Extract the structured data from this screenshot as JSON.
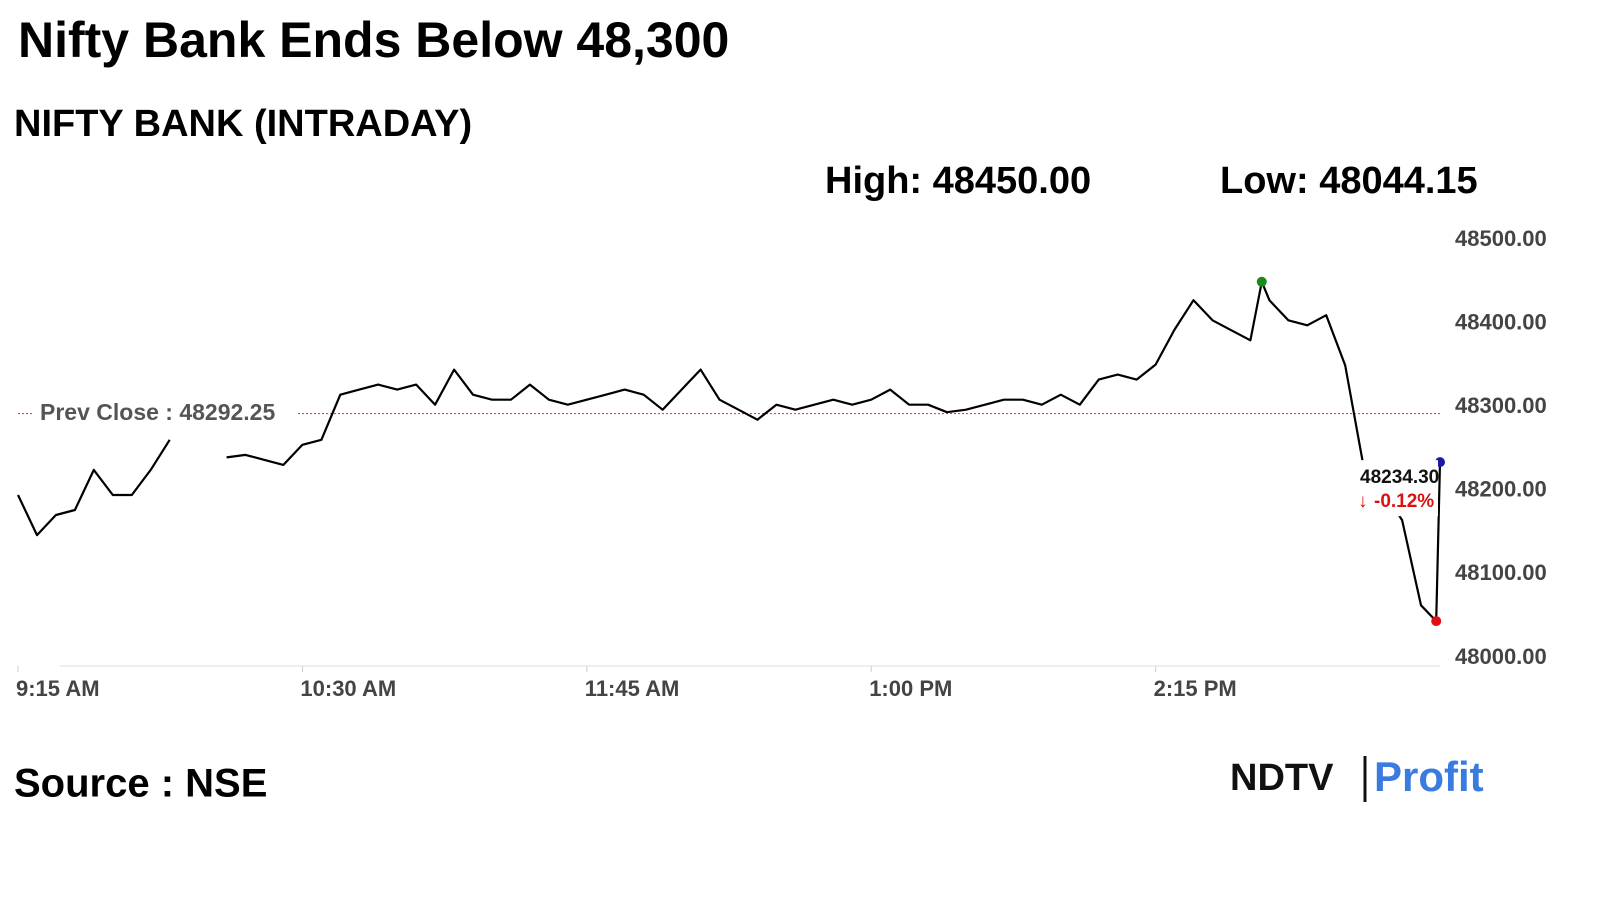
{
  "chart_data": {
    "type": "line",
    "title": "Nifty Bank Ends Below 48,300",
    "subtitle": "NIFTY BANK (INTRADAY)",
    "high_label": "High: 48450.00",
    "low_label": "Low: 48044.15",
    "prev_close": 48292.25,
    "prev_close_label": "Prev Close : 48292.25",
    "prev_close_color": "#d33",
    "last_label": "48234.30",
    "change_label": "-0.12%",
    "source": "Source : NSE",
    "logo": [
      "NDTV",
      "Profit"
    ],
    "x": [
      "9:15 AM",
      "9:20 AM",
      "9:25 AM",
      "9:30 AM",
      "9:35 AM",
      "9:40 AM",
      "9:45 AM",
      "9:50 AM",
      "9:55 AM",
      "10:00 AM",
      "10:05 AM",
      "10:10 AM",
      "10:15 AM",
      "10:20 AM",
      "10:25 AM",
      "10:30 AM",
      "10:35 AM",
      "10:40 AM",
      "10:45 AM",
      "10:50 AM",
      "10:55 AM",
      "11:00 AM",
      "11:05 AM",
      "11:10 AM",
      "11:15 AM",
      "11:20 AM",
      "11:25 AM",
      "11:30 AM",
      "11:35 AM",
      "11:40 AM",
      "11:45 AM",
      "11:50 AM",
      "11:55 AM",
      "12:00 PM",
      "12:05 PM",
      "12:10 PM",
      "12:15 PM",
      "12:20 PM",
      "12:25 PM",
      "12:30 PM",
      "12:35 PM",
      "12:40 PM",
      "12:45 PM",
      "12:50 PM",
      "12:55 PM",
      "1:00 PM",
      "1:05 PM",
      "1:10 PM",
      "1:15 PM",
      "1:20 PM",
      "1:25 PM",
      "1:30 PM",
      "1:35 PM",
      "1:40 PM",
      "1:45 PM",
      "1:50 PM",
      "1:55 PM",
      "2:00 PM",
      "2:05 PM",
      "2:10 PM",
      "2:15 PM",
      "2:20 PM",
      "2:25 PM",
      "2:30 PM",
      "2:35 PM",
      "2:40 PM",
      "2:43 PM",
      "2:45 PM",
      "2:50 PM",
      "2:55 PM",
      "3:00 PM",
      "3:05 PM",
      "3:10 PM",
      "3:15 PM",
      "3:20 PM",
      "3:25 PM",
      "3:29 PM",
      "3:30 PM"
    ],
    "series": [
      {
        "name": "NIFTY BANK",
        "color": "#000000",
        "values": [
          48195,
          48147,
          48171,
          48177,
          48225,
          48195,
          48195,
          48225,
          48261,
          null,
          null,
          48240,
          48243,
          48237,
          48231,
          48255,
          48261,
          48315,
          48321,
          48327,
          48321,
          48327,
          48303,
          48345,
          48315,
          48309,
          48309,
          48327,
          48309,
          48303,
          48309,
          48315,
          48321,
          48315,
          48297,
          48321,
          48345,
          48309,
          48297,
          48285,
          48303,
          48297,
          48303,
          48309,
          48303,
          48309,
          48321,
          48303,
          48303,
          48294,
          48297,
          48303,
          48309,
          48309,
          48303,
          48315,
          48303,
          48333,
          48339,
          48333,
          48351,
          48393,
          48428,
          48404,
          48392,
          48380,
          48450,
          48428,
          48404,
          48398,
          48410,
          48350,
          48225,
          48200,
          48165,
          48063,
          48044.15,
          48234.3
        ]
      }
    ],
    "xlim": [
      "9:15 AM",
      "3:30 PM"
    ],
    "xticks": [
      "9:15 AM",
      "10:30 AM",
      "11:45 AM",
      "1:00 PM",
      "2:15 PM"
    ],
    "ylim": [
      48000,
      48500
    ],
    "yticks": [
      {
        "value": 48000,
        "label": "48000.00"
      },
      {
        "value": 48100,
        "label": "48100.00"
      },
      {
        "value": 48200,
        "label": "48200.00"
      },
      {
        "value": 48300,
        "label": "48300.00"
      },
      {
        "value": 48400,
        "label": "48400.00"
      },
      {
        "value": 48500,
        "label": "48500.00"
      }
    ],
    "high_color": "#1a8a1a",
    "low_color": "#e01010",
    "last_color": "#1a1aa0"
  }
}
